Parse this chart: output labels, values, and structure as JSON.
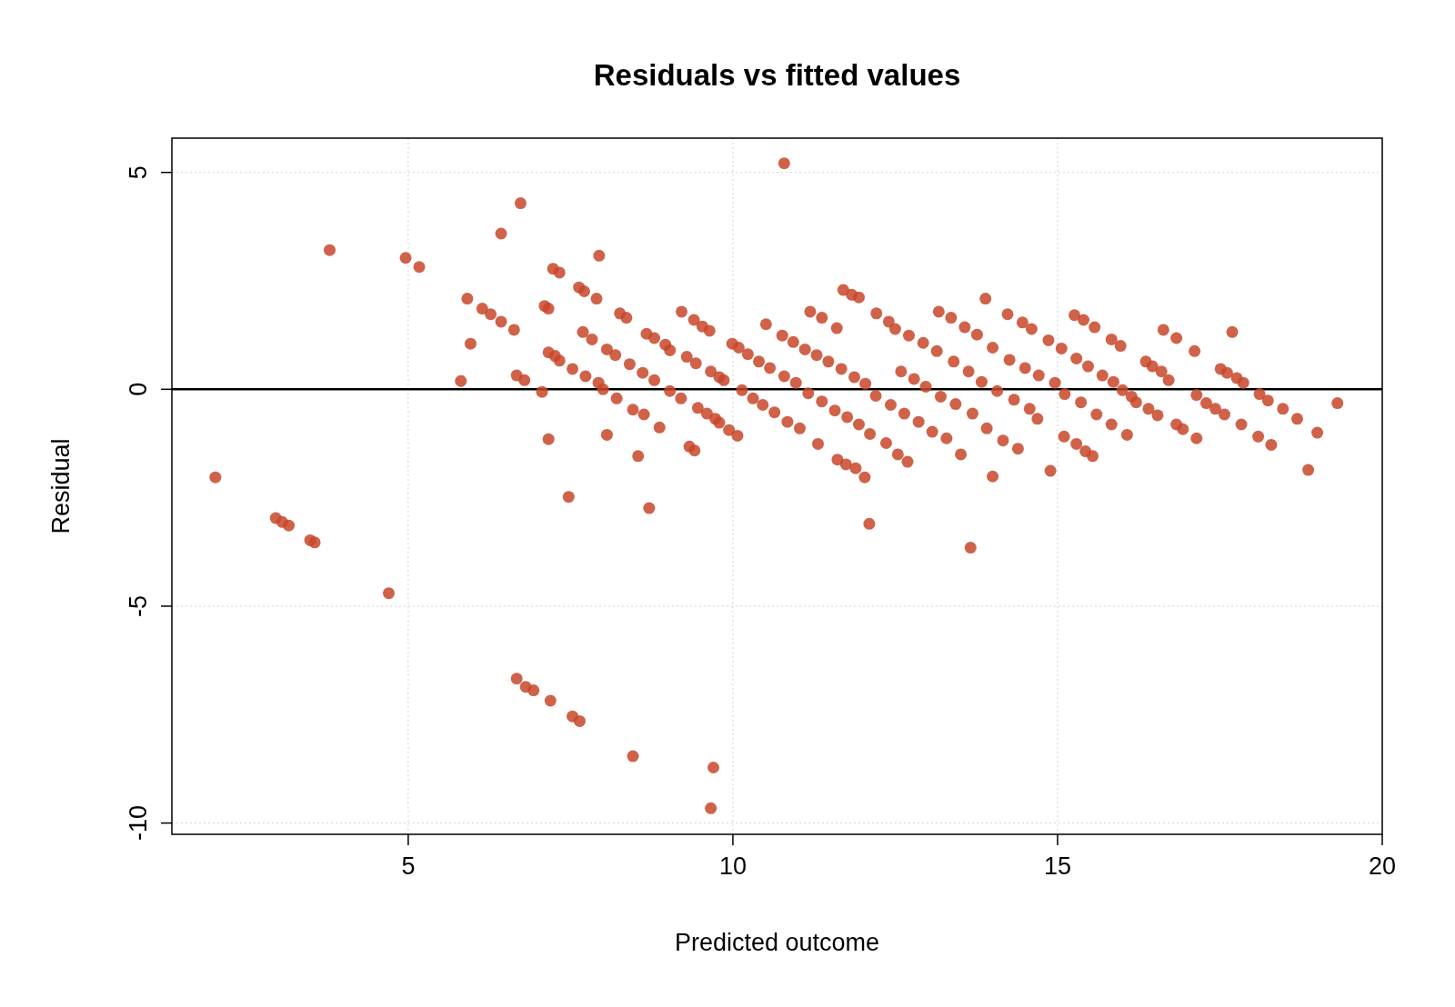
{
  "chart_data": {
    "type": "scatter",
    "title": "Residuals vs fitted values",
    "xlabel": "Predicted outcome",
    "ylabel": "Residual",
    "xlim": [
      1.36,
      20
    ],
    "xticks": [
      5,
      10,
      15,
      20
    ],
    "ylim": [
      -10.26,
      5.79
    ],
    "yticks": [
      5,
      0,
      -5,
      -10
    ],
    "grid": true,
    "marker": "circle",
    "ref_lines": [
      {
        "axis": "y",
        "value": 0,
        "color": "#000000",
        "line_style": "solid"
      }
    ],
    "series": [
      {
        "color": "#c8462a",
        "x": [
          2.03,
          2.96,
          3.06,
          3.16,
          3.49,
          3.56,
          3.79,
          4.7,
          4.96,
          5.17,
          5.81,
          5.91,
          5.96,
          6.14,
          6.27,
          6.43,
          6.43,
          6.63,
          6.67,
          6.67,
          6.73,
          6.79,
          6.81,
          6.93,
          7.06,
          7.1,
          7.16,
          7.16,
          7.16,
          7.19,
          7.23,
          7.26,
          7.33,
          7.33,
          7.47,
          7.53,
          7.53,
          7.63,
          7.64,
          7.69,
          7.71,
          7.73,
          7.83,
          7.9,
          7.94,
          7.93,
          8.0,
          8.06,
          8.06,
          8.19,
          8.21,
          8.26,
          8.36,
          8.41,
          8.46,
          8.46,
          8.54,
          8.61,
          8.63,
          8.67,
          8.71,
          8.79,
          8.79,
          8.87,
          8.96,
          9.03,
          9.03,
          9.21,
          9.2,
          9.29,
          9.33,
          9.4,
          9.41,
          9.43,
          9.46,
          9.53,
          9.6,
          9.64,
          9.66,
          9.66,
          9.7,
          9.73,
          9.79,
          9.79,
          9.86,
          9.94,
          9.99,
          10.07,
          10.09,
          10.14,
          10.23,
          10.31,
          10.4,
          10.46,
          10.51,
          10.57,
          10.64,
          10.76,
          10.79,
          10.79,
          10.84,
          10.93,
          10.97,
          11.03,
          11.11,
          11.16,
          11.19,
          11.29,
          11.31,
          11.37,
          11.37,
          11.47,
          11.57,
          11.6,
          11.61,
          11.67,
          11.7,
          11.74,
          11.76,
          11.83,
          11.87,
          11.89,
          11.94,
          11.94,
          12.03,
          12.04,
          12.1,
          12.11,
          12.21,
          12.2,
          12.36,
          12.4,
          12.43,
          12.5,
          12.54,
          12.59,
          12.64,
          12.69,
          12.71,
          12.79,
          12.86,
          12.93,
          12.97,
          13.07,
          13.14,
          13.17,
          13.2,
          13.29,
          13.36,
          13.4,
          13.43,
          13.51,
          13.57,
          13.63,
          13.66,
          13.69,
          13.76,
          13.83,
          13.89,
          13.91,
          14.0,
          14.0,
          14.07,
          14.16,
          14.23,
          14.26,
          14.33,
          14.39,
          14.46,
          14.5,
          14.57,
          14.6,
          14.69,
          14.71,
          14.86,
          14.89,
          14.96,
          15.06,
          15.1,
          15.11,
          15.26,
          15.29,
          15.29,
          15.36,
          15.4,
          15.43,
          15.47,
          15.54,
          15.57,
          15.6,
          15.69,
          15.83,
          15.83,
          15.86,
          15.97,
          16.0,
          16.07,
          16.14,
          16.21,
          16.36,
          16.4,
          16.46,
          16.54,
          16.6,
          16.63,
          16.71,
          16.83,
          16.83,
          16.93,
          17.11,
          17.14,
          17.14,
          17.29,
          17.43,
          17.51,
          17.57,
          17.61,
          17.69,
          17.76,
          17.83,
          17.86,
          18.09,
          18.11,
          18.24,
          18.29,
          18.47,
          18.69,
          18.86,
          19.0,
          19.31
        ],
        "values": [
          -2.03,
          -2.97,
          -3.06,
          -3.14,
          -3.48,
          -3.53,
          3.21,
          -4.7,
          3.03,
          2.82,
          0.19,
          2.09,
          1.05,
          1.86,
          1.73,
          1.56,
          3.59,
          1.37,
          0.32,
          -6.67,
          4.29,
          0.21,
          -6.86,
          -6.94,
          -0.06,
          1.92,
          1.86,
          -1.15,
          0.85,
          -7.18,
          2.78,
          0.77,
          2.69,
          0.66,
          -2.48,
          0.47,
          -7.54,
          2.35,
          -7.65,
          1.32,
          2.26,
          0.3,
          1.15,
          2.09,
          3.08,
          0.15,
          0.0,
          -1.05,
          0.92,
          0.79,
          -0.21,
          1.75,
          1.65,
          0.58,
          -0.47,
          -8.46,
          -1.54,
          0.38,
          -0.58,
          1.28,
          -2.74,
          1.18,
          0.21,
          -0.88,
          1.03,
          0.9,
          -0.04,
          1.79,
          -0.21,
          0.75,
          -1.32,
          1.6,
          -1.41,
          0.6,
          -0.43,
          1.45,
          -0.56,
          1.35,
          0.41,
          -9.66,
          -8.72,
          -0.68,
          0.28,
          -0.77,
          0.21,
          -0.94,
          1.05,
          -1.07,
          0.96,
          -0.02,
          0.81,
          -0.21,
          0.64,
          -0.36,
          1.5,
          0.49,
          -0.53,
          1.24,
          5.21,
          0.3,
          -0.75,
          1.09,
          0.15,
          -0.9,
          0.92,
          -0.09,
          1.79,
          0.79,
          -1.26,
          1.65,
          -0.28,
          0.64,
          -0.49,
          1.41,
          -1.62,
          0.47,
          2.29,
          -1.73,
          -0.64,
          2.18,
          0.28,
          -1.82,
          2.12,
          -0.81,
          -2.03,
          0.13,
          -3.1,
          -1.03,
          1.75,
          -0.15,
          -1.24,
          1.56,
          -0.36,
          1.39,
          -1.5,
          0.41,
          -0.56,
          -1.67,
          1.24,
          0.24,
          -0.75,
          1.07,
          0.06,
          -0.98,
          0.88,
          1.79,
          -0.17,
          -1.13,
          1.65,
          0.64,
          -0.34,
          -1.5,
          1.43,
          0.41,
          -3.65,
          -0.56,
          1.26,
          0.17,
          2.09,
          -0.9,
          0.96,
          -2.01,
          -0.04,
          -1.18,
          1.73,
          0.68,
          -0.24,
          -1.37,
          1.54,
          0.49,
          -0.45,
          1.39,
          -0.68,
          0.32,
          1.13,
          -1.88,
          0.15,
          0.94,
          -1.09,
          -0.11,
          1.71,
          0.71,
          -1.26,
          -0.3,
          1.6,
          -1.43,
          0.53,
          -1.54,
          1.43,
          -0.58,
          0.32,
          1.15,
          -0.81,
          0.17,
          1.0,
          -0.02,
          -1.05,
          -0.17,
          -0.3,
          0.64,
          -0.45,
          0.53,
          -0.6,
          0.41,
          1.37,
          0.21,
          -0.81,
          1.18,
          -0.92,
          0.88,
          -0.13,
          -1.13,
          -0.32,
          -0.45,
          0.47,
          -0.58,
          0.38,
          1.32,
          0.26,
          -0.81,
          0.15,
          -1.09,
          -0.11,
          -0.26,
          -1.28,
          -0.45,
          -0.68,
          -1.86,
          -1.0,
          -0.32
        ]
      }
    ]
  }
}
